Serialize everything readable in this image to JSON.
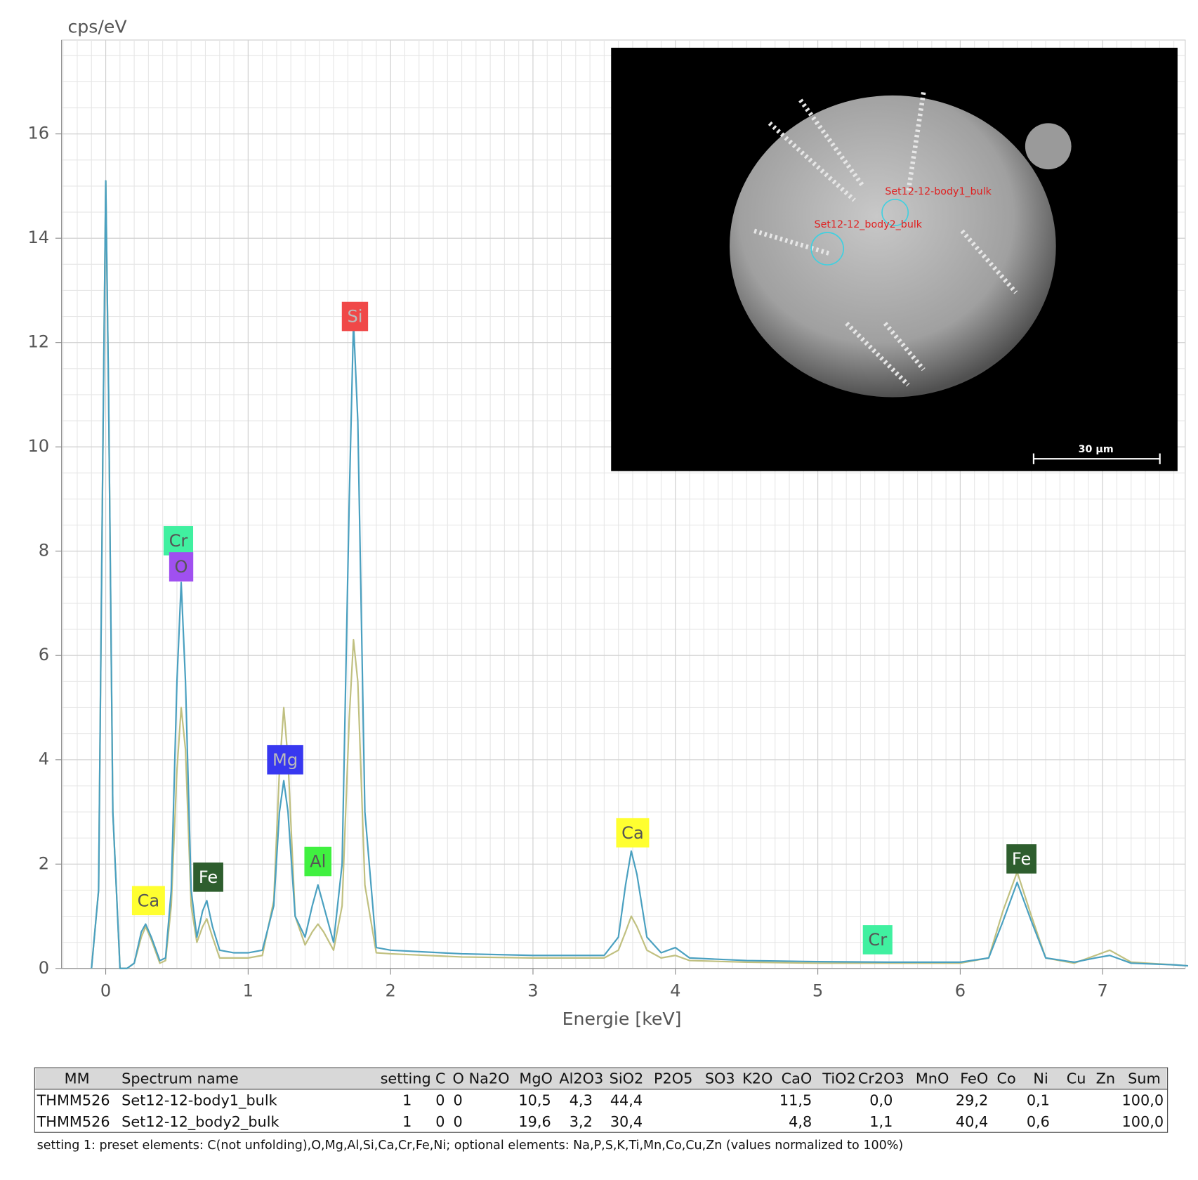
{
  "chart_data": {
    "type": "line",
    "y_label": "cps/eV",
    "x_label": "Energie [keV]",
    "xlim": [
      -0.31,
      7.58
    ],
    "ylim": [
      0,
      17.8
    ],
    "xticks": [
      0,
      1,
      2,
      3,
      4,
      5,
      6,
      7
    ],
    "yticks": [
      0,
      2,
      4,
      6,
      8,
      10,
      12,
      14,
      16
    ],
    "grid": true,
    "minor_grid": {
      "x": 0.1,
      "y": 0.5
    },
    "x": [
      -0.1,
      -0.05,
      -0.02,
      0,
      0.02,
      0.05,
      0.1,
      0.15,
      0.2,
      0.25,
      0.28,
      0.32,
      0.38,
      0.42,
      0.46,
      0.5,
      0.53,
      0.56,
      0.6,
      0.64,
      0.68,
      0.71,
      0.75,
      0.8,
      0.9,
      1.0,
      1.1,
      1.18,
      1.22,
      1.25,
      1.28,
      1.33,
      1.4,
      1.45,
      1.49,
      1.53,
      1.6,
      1.66,
      1.71,
      1.74,
      1.77,
      1.82,
      1.9,
      2.0,
      2.5,
      3.0,
      3.5,
      3.6,
      3.65,
      3.69,
      3.73,
      3.8,
      3.9,
      4.0,
      4.1,
      4.5,
      5.0,
      5.5,
      6.0,
      6.2,
      6.3,
      6.4,
      6.5,
      6.6,
      6.8,
      6.95,
      7.05,
      7.2,
      7.5,
      7.6
    ],
    "series": [
      {
        "color": "#c0c080",
        "values": [
          0,
          1.5,
          10,
          15.1,
          11,
          3,
          0,
          0,
          0.1,
          0.6,
          0.8,
          0.55,
          0.1,
          0.15,
          1.2,
          3.8,
          5.0,
          4.2,
          1.2,
          0.5,
          0.8,
          0.95,
          0.6,
          0.2,
          0.2,
          0.2,
          0.25,
          1.3,
          3.8,
          5.0,
          4.0,
          1.0,
          0.45,
          0.7,
          0.85,
          0.7,
          0.35,
          1.2,
          4.8,
          6.3,
          5.5,
          1.6,
          0.3,
          0.28,
          0.22,
          0.2,
          0.2,
          0.35,
          0.7,
          1.0,
          0.8,
          0.35,
          0.2,
          0.25,
          0.15,
          0.12,
          0.1,
          0.1,
          0.1,
          0.2,
          1.1,
          1.85,
          1.0,
          0.2,
          0.1,
          0.25,
          0.35,
          0.12,
          0.07,
          0.05
        ]
      },
      {
        "color": "#4aa0c0",
        "values": [
          0,
          1.5,
          10,
          15.1,
          11,
          3,
          0,
          0,
          0.1,
          0.7,
          0.85,
          0.6,
          0.15,
          0.2,
          1.5,
          5.5,
          7.4,
          5.5,
          1.5,
          0.6,
          1.1,
          1.3,
          0.8,
          0.35,
          0.3,
          0.3,
          0.35,
          1.2,
          3.0,
          3.6,
          3.0,
          1.0,
          0.6,
          1.2,
          1.6,
          1.2,
          0.5,
          2.0,
          9.0,
          12.4,
          10.5,
          3.0,
          0.4,
          0.35,
          0.28,
          0.25,
          0.25,
          0.6,
          1.6,
          2.25,
          1.8,
          0.6,
          0.3,
          0.4,
          0.2,
          0.15,
          0.13,
          0.12,
          0.12,
          0.2,
          0.9,
          1.65,
          0.9,
          0.2,
          0.12,
          0.2,
          0.25,
          0.1,
          0.07,
          0.05
        ]
      }
    ],
    "peak_labels": [
      {
        "label": "Ca",
        "x": 0.3,
        "y": 1.3,
        "color": "#ffff30",
        "text_color": "#555555"
      },
      {
        "label": "Cr",
        "x": 0.51,
        "y": 8.2,
        "color": "#40f0a0",
        "text_color": "#555555"
      },
      {
        "label": "O",
        "x": 0.53,
        "y": 7.7,
        "color": "#a050f0",
        "text_color": "#555555"
      },
      {
        "label": "Fe",
        "x": 0.72,
        "y": 1.75,
        "color": "#2e5e2e",
        "text_color": "#ffffff"
      },
      {
        "label": "Mg",
        "x": 1.26,
        "y": 4.0,
        "color": "#3838f0",
        "text_color": "#bbbbbb"
      },
      {
        "label": "Al",
        "x": 1.49,
        "y": 2.05,
        "color": "#40f040",
        "text_color": "#555555"
      },
      {
        "label": "Si",
        "x": 1.75,
        "y": 12.5,
        "color": "#f04848",
        "text_color": "#bbbbbb"
      },
      {
        "label": "Ca",
        "x": 3.7,
        "y": 2.6,
        "color": "#ffff30",
        "text_color": "#555555"
      },
      {
        "label": "Cr",
        "x": 5.42,
        "y": 0.55,
        "color": "#40f0a0",
        "text_color": "#555555"
      },
      {
        "label": "Fe",
        "x": 6.43,
        "y": 2.1,
        "color": "#2e5e2e",
        "text_color": "#ffffff"
      }
    ]
  },
  "inset": {
    "spots": [
      "Set12-12-body1_bulk",
      "Set12-12_body2_bulk"
    ],
    "scale_bar": "30 µm"
  },
  "table": {
    "header": [
      "MM",
      "Spectrum name",
      "setting",
      "C",
      "O",
      "Na2O",
      "MgO",
      "Al2O3",
      "SiO2",
      "P2O5",
      "SO3",
      "K2O",
      "CaO",
      "TiO2",
      "Cr2O3",
      "MnO",
      "FeO",
      "Co",
      "Ni",
      "Cu",
      "Zn",
      "Sum"
    ],
    "rows": [
      [
        "THMM526",
        "Set12-12-body1_bulk",
        "1",
        "0",
        "0",
        null,
        "10,5",
        "4,3",
        "44,4",
        null,
        null,
        null,
        "11,5",
        null,
        "0,0",
        null,
        "29,2",
        null,
        "0,1",
        null,
        null,
        "100,0"
      ],
      [
        "THMM526",
        "Set12-12_body2_bulk",
        "1",
        "0",
        "0",
        null,
        "19,6",
        "3,2",
        "30,4",
        null,
        null,
        null,
        "4,8",
        null,
        "1,1",
        null,
        "40,4",
        null,
        "0,6",
        null,
        null,
        "100,0"
      ]
    ],
    "footnote": "setting 1: preset elements: C(not unfolding),O,Mg,Al,Si,Ca,Cr,Fe,Ni; optional elements: Na,P,S,K,Ti,Mn,Co,Cu,Zn (values normalized to 100%)"
  }
}
